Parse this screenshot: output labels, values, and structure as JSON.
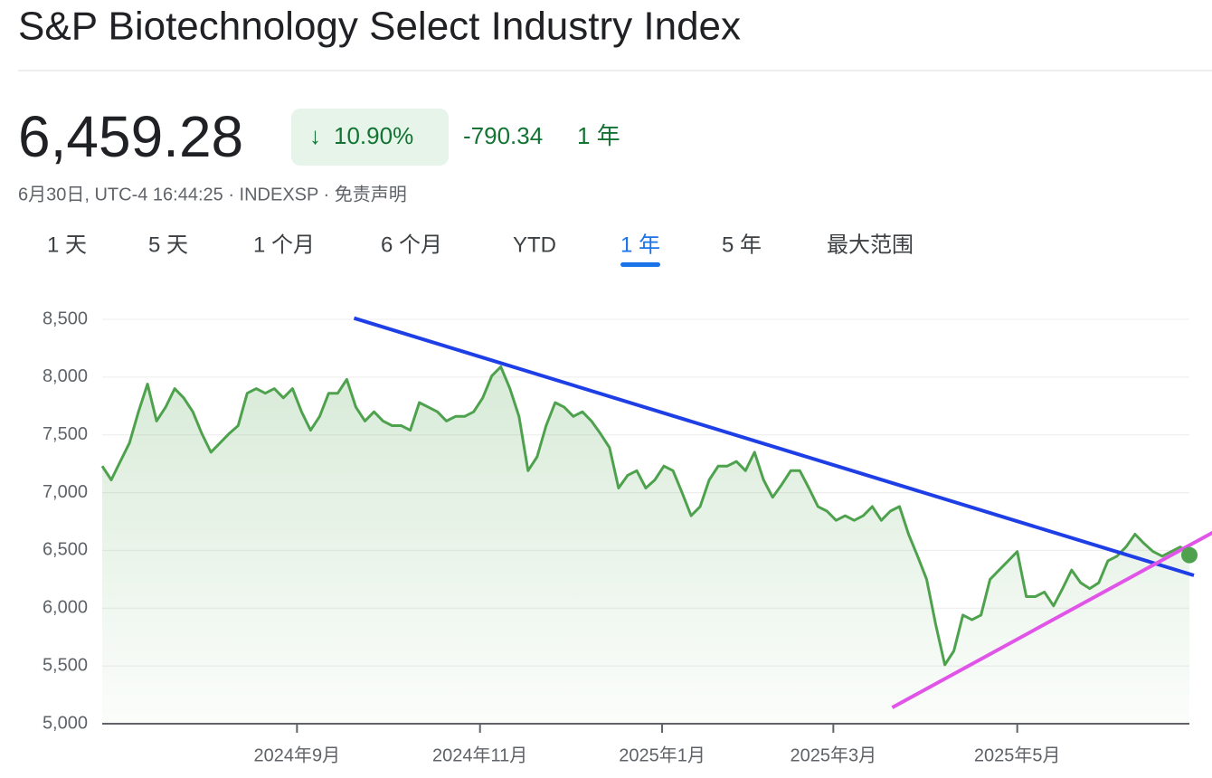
{
  "header": {
    "title": "S&P Biotechnology Select Industry Index",
    "price": "6,459.28",
    "change_percent": "10.90%",
    "change": "-790.34",
    "period": "1 年",
    "meta": "6月30日, UTC-4 16:44:25 · INDEXSP · 免责声明"
  },
  "tabs": {
    "items": [
      "1 天",
      "5 天",
      "1 个月",
      "6 个月",
      "YTD",
      "1 年",
      "5 年",
      "最大范围"
    ],
    "active": 5
  },
  "chart_data": {
    "type": "area",
    "color": "#4ea24e",
    "values": [
      7230,
      7110,
      7270,
      7430,
      7700,
      7940,
      7620,
      7740,
      7900,
      7820,
      7700,
      7510,
      7350,
      7430,
      7510,
      7580,
      7860,
      7900,
      7860,
      7900,
      7820,
      7900,
      7700,
      7540,
      7660,
      7860,
      7860,
      7980,
      7740,
      7620,
      7700,
      7620,
      7580,
      7580,
      7540,
      7780,
      7740,
      7700,
      7620,
      7660,
      7660,
      7700,
      7820,
      8010,
      8090,
      7900,
      7660,
      7190,
      7310,
      7580,
      7780,
      7740,
      7660,
      7700,
      7620,
      7510,
      7390,
      7040,
      7150,
      7190,
      7040,
      7110,
      7230,
      7190,
      7000,
      6800,
      6880,
      7110,
      7230,
      7230,
      7270,
      7190,
      7350,
      7110,
      6960,
      7070,
      7190,
      7190,
      7040,
      6880,
      6840,
      6760,
      6800,
      6760,
      6800,
      6880,
      6760,
      6840,
      6880,
      6640,
      6450,
      6250,
      5860,
      5510,
      5630,
      5940,
      5900,
      5940,
      6250,
      6330,
      6410,
      6490,
      6100,
      6100,
      6140,
      6020,
      6170,
      6330,
      6220,
      6170,
      6220,
      6410,
      6450,
      6530,
      6640,
      6560,
      6490,
      6450,
      6490,
      6530,
      6459.28
    ],
    "xlim": [
      0,
      120
    ],
    "xticks": [
      {
        "value": 21.5,
        "label": "2024年9月"
      },
      {
        "value": 41.7,
        "label": "2024年11月"
      },
      {
        "value": 61.8,
        "label": "2025年1月"
      },
      {
        "value": 80.7,
        "label": "2025年3月"
      },
      {
        "value": 101,
        "label": "2025年5月"
      }
    ],
    "ylim": [
      5000,
      8500
    ],
    "yticks": [
      {
        "value": 5000,
        "label": "5,000"
      },
      {
        "value": 5500,
        "label": "5,500"
      },
      {
        "value": 6000,
        "label": "6,000"
      },
      {
        "value": 6500,
        "label": "6,500"
      },
      {
        "value": 7000,
        "label": "7,000"
      },
      {
        "value": 7500,
        "label": "7,500"
      },
      {
        "value": 8000,
        "label": "8,000"
      },
      {
        "value": 8500,
        "label": "8,500"
      }
    ],
    "grid": true,
    "trend_lines": [
      {
        "color": "#1f3fe6",
        "x": [
          27.8,
          120.5
        ],
        "values": [
          8510,
          6284
        ]
      },
      {
        "color": "#e055e8",
        "x": [
          87.2,
          122.7
        ],
        "values": [
          5140,
          6660
        ]
      }
    ]
  }
}
